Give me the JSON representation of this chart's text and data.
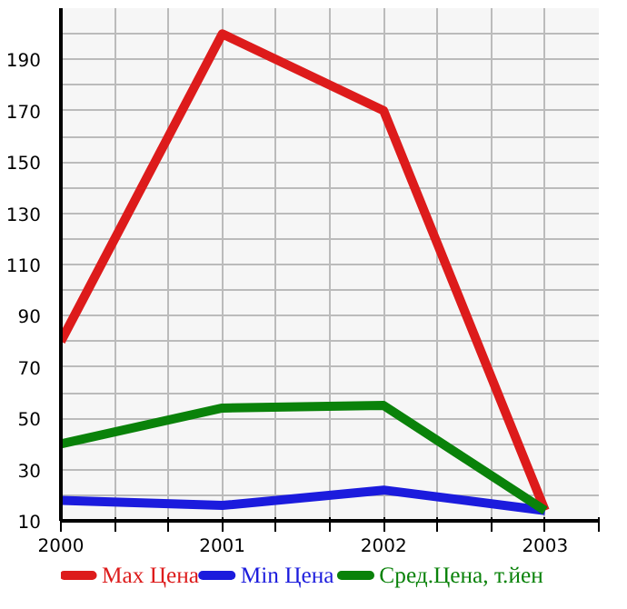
{
  "chart_data": {
    "type": "line",
    "x": [
      2000,
      2001,
      2002,
      2003
    ],
    "series": [
      {
        "name": "Max Цена",
        "color": "#dd1b1b",
        "values": [
          80,
          200,
          170,
          14
        ]
      },
      {
        "name": "Min Цена",
        "color": "#1b1bdd",
        "values": [
          18,
          16,
          22,
          14
        ]
      },
      {
        "name": "Сред.Цена, т.йен",
        "color": "#0a820a",
        "values": [
          40,
          54,
          55,
          14
        ]
      }
    ],
    "xlim": [
      2000,
      2003.333
    ],
    "xticks": [
      2000,
      {
        "value": 2000.333,
        "label": null
      },
      {
        "value": 2000.667,
        "label": null
      },
      2001,
      {
        "value": 2001.333,
        "label": null
      },
      {
        "value": 2001.667,
        "label": null
      },
      2002,
      {
        "value": 2002.333,
        "label": null
      },
      {
        "value": 2002.667,
        "label": null
      },
      2003,
      {
        "value": 2003.333,
        "label": null
      }
    ],
    "ylim": [
      10,
      210
    ],
    "yticks": [
      10,
      {
        "value": 20,
        "label": null
      },
      30,
      {
        "value": 40,
        "label": null
      },
      50,
      {
        "value": 60,
        "label": null
      },
      70,
      {
        "value": 80,
        "label": null
      },
      90,
      {
        "value": 100,
        "label": null
      },
      110,
      {
        "value": 120,
        "label": null
      },
      130,
      {
        "value": 140,
        "label": null
      },
      150,
      {
        "value": 160,
        "label": null
      },
      170,
      {
        "value": 180,
        "label": null
      },
      190,
      {
        "value": 200,
        "label": null
      },
      {
        "value": 210,
        "label": null
      }
    ],
    "grid": true,
    "legend": "bottom",
    "marker": "none",
    "line_style": "solid"
  }
}
